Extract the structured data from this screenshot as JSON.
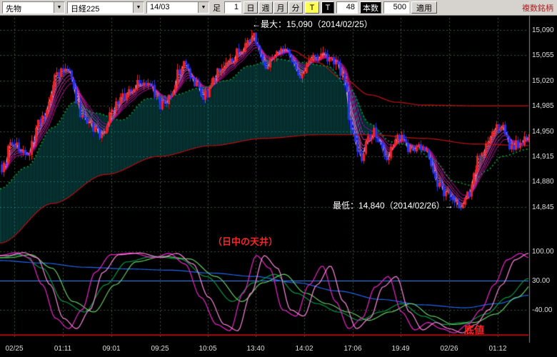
{
  "toolbar": {
    "instrument_type": "先物",
    "instrument": "日経225",
    "contract_month": "14/03",
    "bar_label": "足",
    "bar_value": "1",
    "period_buttons": [
      {
        "label": "日",
        "name": "day"
      },
      {
        "label": "週",
        "name": "week"
      },
      {
        "label": "月",
        "name": "month"
      },
      {
        "label": "分",
        "name": "minute"
      }
    ],
    "tick_button": "T",
    "tick_param_label": "T",
    "tick_param_value": "48",
    "bars_label": "本数",
    "bars_value": "500",
    "apply_label": "適用",
    "multi_symbol_label": "複数銘柄"
  },
  "chart_data": {
    "type": "candlestick",
    "instrument": "日経225 先物 14/03",
    "bars_shown": "500",
    "annotations": {
      "max": "←最大：15,090（2014/02/25）",
      "min": "最低：14,840（2014/02/26）→",
      "ceiling": "（日中の天井）",
      "bottom": "底値"
    },
    "extremes": {
      "max": 15090,
      "min": 14840
    },
    "price_axis_labels": [
      "15,090",
      "15,055",
      "15,020",
      "14,985",
      "14,950",
      "14,915",
      "14,880",
      "14,845"
    ],
    "price_axis_values": [
      15090,
      15055,
      15020,
      14985,
      14950,
      14915,
      14880,
      14845
    ],
    "time_axis_labels": [
      "02/25",
      "01:11",
      "09:01",
      "09:25",
      "10:05",
      "13:40",
      "14:02",
      "17:06",
      "19:49",
      "02/26",
      "01:12"
    ],
    "osc_axis_labels": [
      "100.00",
      "30.00",
      "-40.00"
    ],
    "osc_axis_values": [
      100,
      30,
      -40
    ],
    "price_path": [
      [
        0,
        14900
      ],
      [
        0.02,
        14935
      ],
      [
        0.045,
        14915
      ],
      [
        0.075,
        14965
      ],
      [
        0.105,
        15030
      ],
      [
        0.125,
        15035
      ],
      [
        0.15,
        14975
      ],
      [
        0.185,
        14945
      ],
      [
        0.225,
        14995
      ],
      [
        0.27,
        15020
      ],
      [
        0.305,
        14985
      ],
      [
        0.345,
        15040
      ],
      [
        0.385,
        15000
      ],
      [
        0.425,
        15045
      ],
      [
        0.455,
        15060
      ],
      [
        0.473,
        15082
      ],
      [
        0.5,
        15040
      ],
      [
        0.535,
        15060
      ],
      [
        0.565,
        15030
      ],
      [
        0.6,
        15055
      ],
      [
        0.63,
        15045
      ],
      [
        0.65,
        15020
      ],
      [
        0.662,
        14950
      ],
      [
        0.68,
        14915
      ],
      [
        0.705,
        14950
      ],
      [
        0.73,
        14915
      ],
      [
        0.755,
        14945
      ],
      [
        0.775,
        14920
      ],
      [
        0.8,
        14930
      ],
      [
        0.825,
        14880
      ],
      [
        0.85,
        14860
      ],
      [
        0.872,
        14846
      ],
      [
        0.888,
        14865
      ],
      [
        0.905,
        14915
      ],
      [
        0.925,
        14940
      ],
      [
        0.945,
        14960
      ],
      [
        0.965,
        14930
      ],
      [
        1,
        14940
      ]
    ],
    "ma_green": [
      [
        0,
        14870
      ],
      [
        0.05,
        14900
      ],
      [
        0.1,
        14955
      ],
      [
        0.14,
        14990
      ],
      [
        0.18,
        14975
      ],
      [
        0.23,
        14965
      ],
      [
        0.28,
        14995
      ],
      [
        0.33,
        15000
      ],
      [
        0.38,
        15010
      ],
      [
        0.43,
        15020
      ],
      [
        0.47,
        15040
      ],
      [
        0.52,
        15050
      ],
      [
        0.57,
        15045
      ],
      [
        0.62,
        15040
      ],
      [
        0.66,
        15010
      ],
      [
        0.7,
        14960
      ],
      [
        0.74,
        14935
      ],
      [
        0.78,
        14930
      ],
      [
        0.82,
        14910
      ],
      [
        0.86,
        14880
      ],
      [
        0.89,
        14875
      ],
      [
        0.92,
        14895
      ],
      [
        0.95,
        14915
      ],
      [
        1,
        14925
      ]
    ],
    "ma_long1": [
      [
        0,
        14795
      ],
      [
        0.1,
        14850
      ],
      [
        0.2,
        14890
      ],
      [
        0.3,
        14915
      ],
      [
        0.4,
        14930
      ],
      [
        0.5,
        14940
      ],
      [
        0.6,
        14945
      ],
      [
        0.7,
        14945
      ],
      [
        0.8,
        14940
      ],
      [
        0.9,
        14932
      ],
      [
        1,
        14930
      ]
    ],
    "ma_long2": [
      [
        0.55,
        15062
      ],
      [
        0.6,
        15045
      ],
      [
        0.65,
        15022
      ],
      [
        0.7,
        15000
      ],
      [
        0.75,
        14990
      ],
      [
        0.8,
        14986
      ],
      [
        0.9,
        14985
      ],
      [
        1,
        14985
      ]
    ],
    "oscillator": {
      "range": [
        -110,
        110
      ],
      "baseline": 30,
      "bottom_line": -100,
      "series": [
        {
          "name": "rci-slow",
          "color": "#2266ee",
          "points": [
            [
              0,
              78
            ],
            [
              0.08,
              72
            ],
            [
              0.16,
              62
            ],
            [
              0.24,
              58
            ],
            [
              0.32,
              55
            ],
            [
              0.4,
              48
            ],
            [
              0.48,
              40
            ],
            [
              0.56,
              25
            ],
            [
              0.64,
              5
            ],
            [
              0.72,
              -15
            ],
            [
              0.8,
              -28
            ],
            [
              0.88,
              -35
            ],
            [
              0.94,
              -25
            ],
            [
              1,
              -5
            ]
          ]
        },
        {
          "name": "rci-mid",
          "color": "#009944",
          "points": [
            [
              0,
              85
            ],
            [
              0.04,
              92
            ],
            [
              0.08,
              60
            ],
            [
              0.12,
              -20
            ],
            [
              0.16,
              -45
            ],
            [
              0.2,
              20
            ],
            [
              0.24,
              75
            ],
            [
              0.29,
              88
            ],
            [
              0.34,
              82
            ],
            [
              0.39,
              40
            ],
            [
              0.44,
              -20
            ],
            [
              0.48,
              25
            ],
            [
              0.52,
              45
            ],
            [
              0.56,
              0
            ],
            [
              0.6,
              -25
            ],
            [
              0.64,
              -45
            ],
            [
              0.68,
              -65
            ],
            [
              0.72,
              -45
            ],
            [
              0.76,
              -25
            ],
            [
              0.8,
              -55
            ],
            [
              0.84,
              -75
            ],
            [
              0.88,
              -70
            ],
            [
              0.92,
              -50
            ],
            [
              0.96,
              -10
            ],
            [
              1,
              35
            ]
          ]
        },
        {
          "name": "rci-mid-2",
          "color": "#66cc66",
          "like": "rci-mid",
          "x_offset": 0.018
        },
        {
          "name": "rci-fast",
          "color": "#ee22cc",
          "points": [
            [
              0,
              90
            ],
            [
              0.03,
              97
            ],
            [
              0.055,
              85
            ],
            [
              0.08,
              20
            ],
            [
              0.105,
              -60
            ],
            [
              0.13,
              -85
            ],
            [
              0.155,
              -40
            ],
            [
              0.18,
              50
            ],
            [
              0.21,
              92
            ],
            [
              0.25,
              96
            ],
            [
              0.29,
              85
            ],
            [
              0.32,
              95
            ],
            [
              0.35,
              70
            ],
            [
              0.38,
              -10
            ],
            [
              0.41,
              -75
            ],
            [
              0.435,
              -90
            ],
            [
              0.46,
              0
            ],
            [
              0.485,
              90
            ],
            [
              0.51,
              60
            ],
            [
              0.535,
              -40
            ],
            [
              0.56,
              -55
            ],
            [
              0.585,
              20
            ],
            [
              0.61,
              65
            ],
            [
              0.635,
              -20
            ],
            [
              0.66,
              -85
            ],
            [
              0.685,
              -60
            ],
            [
              0.71,
              15
            ],
            [
              0.735,
              40
            ],
            [
              0.76,
              -45
            ],
            [
              0.785,
              -88
            ],
            [
              0.81,
              -70
            ],
            [
              0.835,
              -85
            ],
            [
              0.86,
              -95
            ],
            [
              0.885,
              -75
            ],
            [
              0.91,
              -40
            ],
            [
              0.935,
              20
            ],
            [
              0.96,
              80
            ],
            [
              0.985,
              95
            ],
            [
              1,
              85
            ]
          ]
        },
        {
          "name": "rci-fast-2",
          "color": "#ff88dd",
          "like": "rci-fast",
          "x_offset": 0.015
        }
      ]
    },
    "colors": {
      "up": "#ee2222",
      "down": "#2233ee",
      "ribbon_start": "#ffb3e6",
      "ribbon_end": "#cc00aa",
      "ma_green": "#009933",
      "ma_long": "#aa1111",
      "cloud": "rgba(0,230,230,0.35)",
      "grid": "rgba(110,145,110,0.55)",
      "axis_text": "#dddddd",
      "baseline_blue": "#4488ff",
      "bottom_red": "#aa1111"
    }
  }
}
